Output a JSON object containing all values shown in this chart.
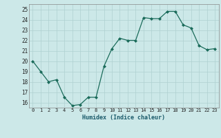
{
  "x": [
    0,
    1,
    2,
    3,
    4,
    5,
    6,
    7,
    8,
    9,
    10,
    11,
    12,
    13,
    14,
    15,
    16,
    17,
    18,
    19,
    20,
    21,
    22,
    23
  ],
  "y": [
    20,
    19,
    18,
    18.2,
    16.5,
    15.7,
    15.8,
    16.5,
    16.5,
    19.5,
    21.2,
    22.2,
    22,
    22,
    24.2,
    24.1,
    24.1,
    24.8,
    24.8,
    23.5,
    23.2,
    21.5,
    21.1,
    21.2
  ],
  "line_color": "#1a6b5a",
  "marker": "D",
  "marker_size": 2.0,
  "bg_color": "#cce8e8",
  "grid_color": "#aed0d0",
  "xlabel": "Humidex (Indice chaleur)",
  "xlim": [
    -0.5,
    23.5
  ],
  "ylim": [
    15.5,
    25.5
  ],
  "yticks": [
    16,
    17,
    18,
    19,
    20,
    21,
    22,
    23,
    24,
    25
  ],
  "xticks": [
    0,
    1,
    2,
    3,
    4,
    5,
    6,
    7,
    8,
    9,
    10,
    11,
    12,
    13,
    14,
    15,
    16,
    17,
    18,
    19,
    20,
    21,
    22,
    23
  ]
}
